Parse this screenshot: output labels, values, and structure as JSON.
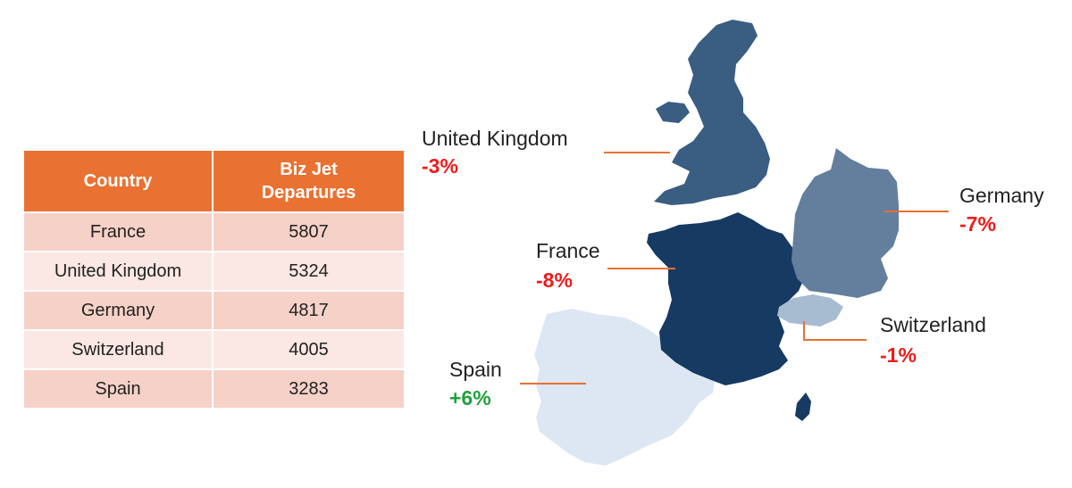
{
  "table": {
    "headers": [
      "Country",
      "Biz Jet\nDepartures"
    ],
    "rows": [
      {
        "country": "France",
        "departures": "5807"
      },
      {
        "country": "United Kingdom",
        "departures": "5324"
      },
      {
        "country": "Germany",
        "departures": "4817"
      },
      {
        "country": "Switzerland",
        "departures": "4005"
      },
      {
        "country": "Spain",
        "departures": "3283"
      }
    ]
  },
  "map": {
    "regions": [
      {
        "key": "uk",
        "name": "United Kingdom",
        "change": "-3%",
        "fill": "#3A5D82"
      },
      {
        "key": "france",
        "name": "France",
        "change": "-8%",
        "fill": "#163A61"
      },
      {
        "key": "germany",
        "name": "Germany",
        "change": "-7%",
        "fill": "#637F9D"
      },
      {
        "key": "switzerland",
        "name": "Switzerland",
        "change": "-1%",
        "fill": "#A7BBD1"
      },
      {
        "key": "spain",
        "name": "Spain",
        "change": "+6%",
        "fill": "#DCE7F3"
      }
    ],
    "colors": {
      "negative": "#EE1B1B",
      "positive": "#1FA23A",
      "leader": "#E97132",
      "header": "#E97132"
    }
  }
}
